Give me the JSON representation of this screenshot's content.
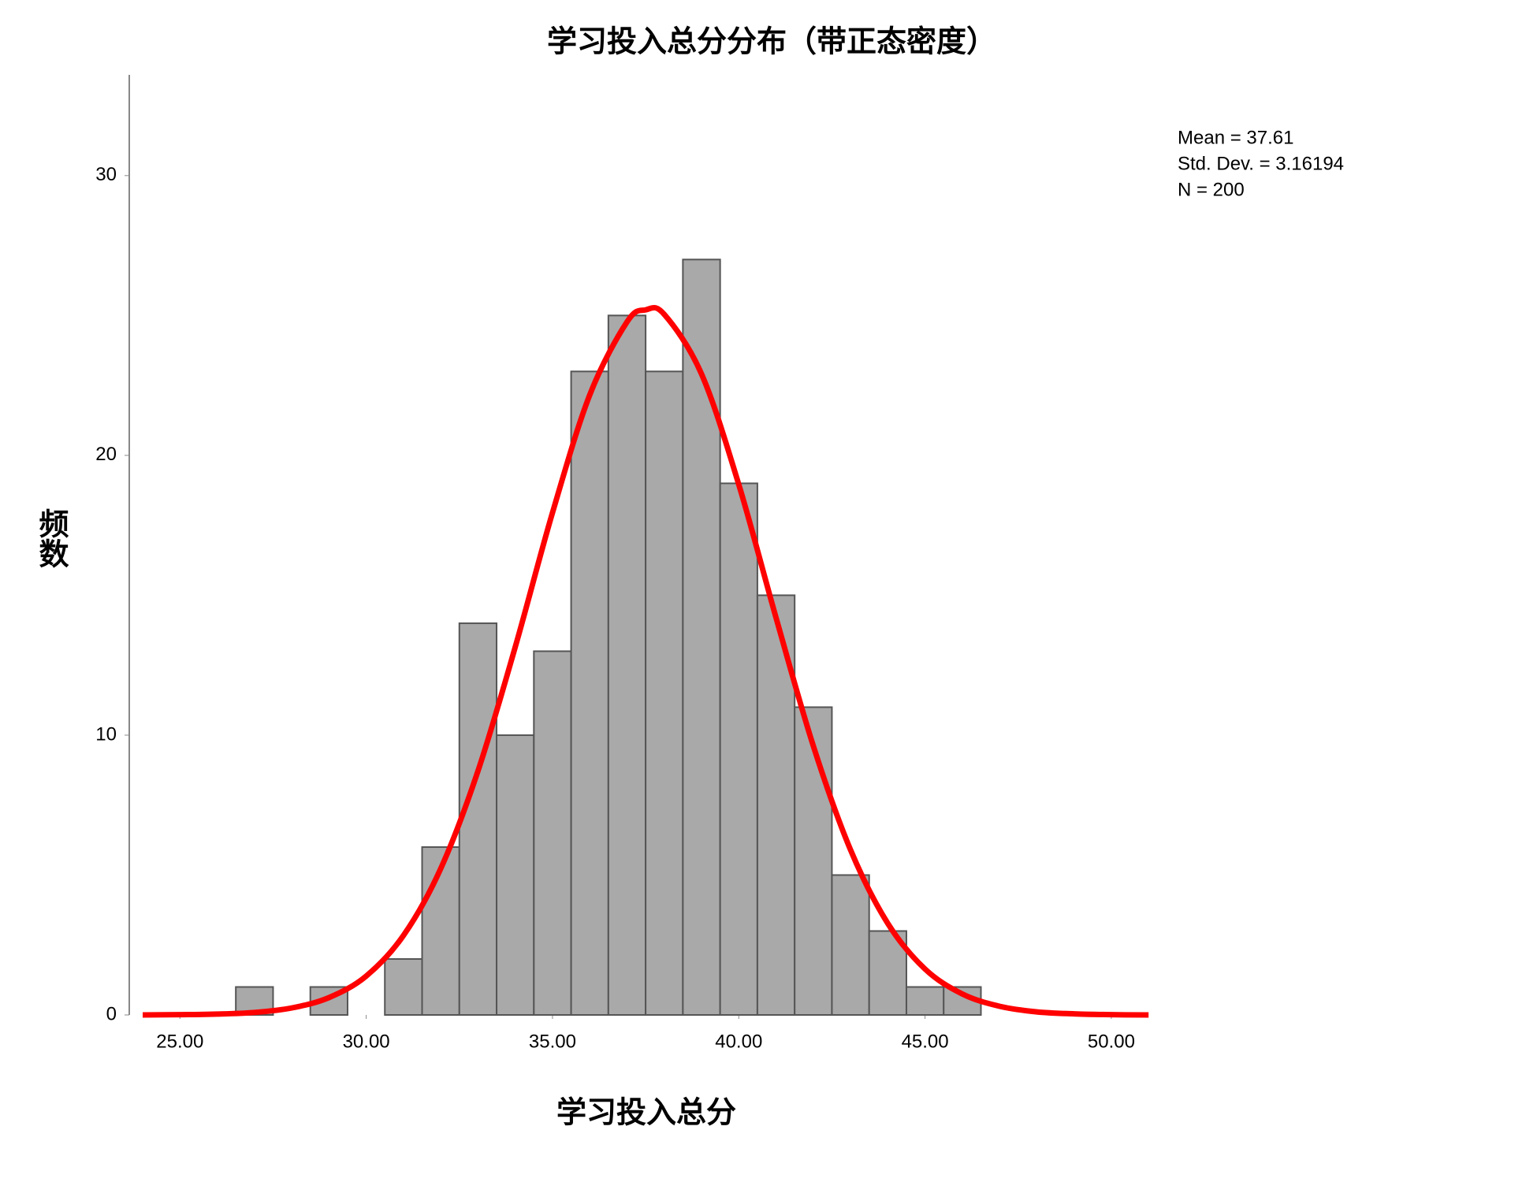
{
  "chart_data": {
    "type": "histogram",
    "title": "学习投入总分分布（带正态密度）",
    "x_label": "学习投入总分",
    "y_label": "频数",
    "annotations": [
      "Mean = 37.61",
      "Std. Dev. = 3.16194",
      "N = 200"
    ],
    "bins": [
      26.5,
      27.5,
      28.5,
      29.5,
      30.5,
      31.5,
      32.5,
      33.5,
      34.5,
      35.5,
      36.5,
      37.5,
      38.5,
      39.5,
      40.5,
      41.5,
      42.5,
      43.5,
      44.5,
      45.5,
      46.5
    ],
    "values": [
      1,
      0,
      1,
      0,
      2,
      6,
      14,
      10,
      13,
      23,
      25,
      23,
      27,
      19,
      15,
      11,
      5,
      3,
      1,
      1
    ],
    "color": "#a9a9a9",
    "edge_color": "#555555",
    "curve": {
      "color": "#ff0000",
      "x": [
        24,
        25,
        26,
        27,
        28,
        29,
        30,
        31,
        32,
        33,
        34,
        35,
        36,
        37,
        37.5,
        38,
        39,
        40,
        41,
        42,
        43,
        44,
        45,
        46,
        47,
        48,
        49,
        50,
        51
      ],
      "values": [
        0,
        0.01,
        0.03,
        0.09,
        0.25,
        0.62,
        1.39,
        2.84,
        5.23,
        8.72,
        13.15,
        17.95,
        22.16,
        24.77,
        25.2,
        25.04,
        22.91,
        18.96,
        14.2,
        9.62,
        5.9,
        3.27,
        1.64,
        0.75,
        0.31,
        0.11,
        0.04,
        0.01,
        0
      ]
    },
    "xlim": [
      23.64,
      51.44
    ],
    "ylim": [
      0,
      33.6
    ],
    "xticks": [
      {
        "value": 25,
        "label": "25.00"
      },
      {
        "value": 30,
        "label": "30.00"
      },
      {
        "value": 35,
        "label": "35.00"
      },
      {
        "value": 40,
        "label": "40.00"
      },
      {
        "value": 45,
        "label": "45.00"
      },
      {
        "value": 50,
        "label": "50.00"
      }
    ],
    "yticks": [
      0,
      10,
      20,
      30
    ],
    "grid": false
  }
}
